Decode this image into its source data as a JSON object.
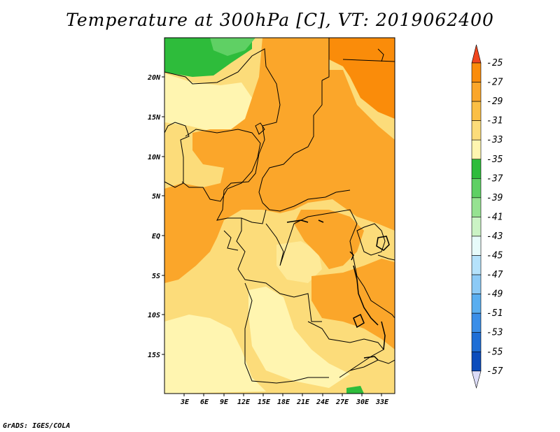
{
  "title": "Temperature at 300hPa [C], VT: 2019062400",
  "credit": "GrADS: IGES/COLA",
  "map": {
    "lat_labels": [
      "20N",
      "15N",
      "10N",
      "5N",
      "EQ",
      "5S",
      "10S",
      "15S"
    ],
    "lat_values": [
      20,
      15,
      10,
      5,
      0,
      -5,
      -10,
      -15
    ],
    "lon_labels": [
      "3E",
      "6E",
      "9E",
      "12E",
      "15E",
      "18E",
      "21E",
      "24E",
      "27E",
      "30E",
      "33E"
    ],
    "lon_values": [
      3,
      6,
      9,
      12,
      15,
      18,
      21,
      24,
      27,
      30,
      33
    ],
    "lon_range": [
      0,
      35
    ],
    "lat_range": [
      -20,
      24.5
    ]
  },
  "colorbar": {
    "labels": [
      "-25",
      "-27",
      "-29",
      "-31",
      "-33",
      "-35",
      "-37",
      "-39",
      "-41",
      "-43",
      "-45",
      "-47",
      "-49",
      "-51",
      "-53",
      "-55",
      "-57"
    ],
    "colors": [
      "#f05a14",
      "#fa8c0a",
      "#fba62a",
      "#fbbf45",
      "#fcdc7a",
      "#fff5b0",
      "#2ebc3b",
      "#5fd064",
      "#96e291",
      "#cbf3c5",
      "#e7fbfa",
      "#b5e2fb",
      "#8ccaf6",
      "#5aaef0",
      "#3a8ee8",
      "#1e6ed6",
      "#0b4cbc",
      "#0a2a96",
      "#050a6e",
      "#dddcf8"
    ],
    "top_color": "#f0461e",
    "bottom_color": "#dcdcf8"
  }
}
